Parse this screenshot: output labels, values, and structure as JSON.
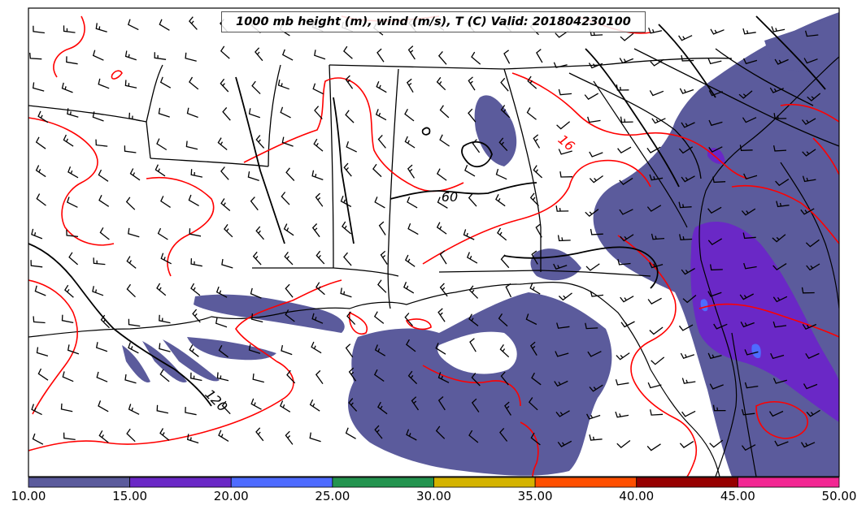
{
  "title": "1000 mb height (m), wind (m/s), T (C) Valid: 201804230100",
  "contour_labels": {
    "height_60": "60",
    "height_120": "120",
    "temp_16": "16"
  },
  "colorbar": {
    "ticks": [
      "10.00",
      "15.00",
      "20.00",
      "25.00",
      "30.00",
      "35.00",
      "40.00",
      "45.00",
      "50.00"
    ],
    "colors": [
      "#5b5b9c",
      "#6a28c6",
      "#4e6bff",
      "#24944f",
      "#d4b300",
      "#ff4f00",
      "#960000",
      "#f22793"
    ]
  },
  "colors": {
    "precip_light": "#5b5b9c",
    "precip_medium": "#6a28c6",
    "precip_heavy": "#4e6bff",
    "temperature_contour": "#ff0000",
    "height_contour": "#000000"
  }
}
